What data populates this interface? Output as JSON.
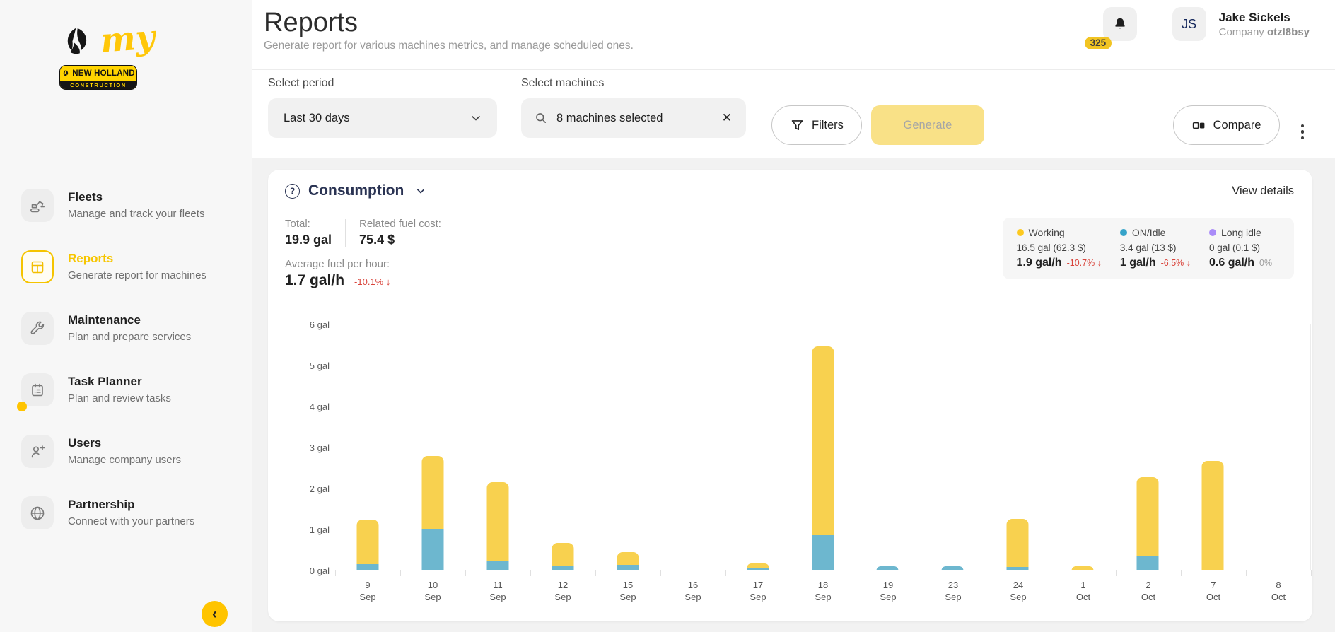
{
  "brand": {
    "my_text": "my",
    "badge_name": "NEW HOLLAND",
    "badge_division": "CONSTRUCTION"
  },
  "header": {
    "title": "Reports",
    "subtitle": "Generate report for various machines metrics, and manage scheduled ones.",
    "notifications_count": "325",
    "user": {
      "initials": "JS",
      "name": "Jake Sickels",
      "company_label": "Company",
      "company_id": "otzl8bsy"
    }
  },
  "filters": {
    "period_label": "Select period",
    "period_value": "Last 30 days",
    "machines_label": "Select machines",
    "machines_value": "8 machines selected",
    "filters_button": "Filters",
    "generate_button": "Generate",
    "compare_button": "Compare"
  },
  "sidebar": {
    "items": [
      {
        "icon": "fleets-icon",
        "title": "Fleets",
        "subtitle": "Manage and track your fleets",
        "active": false,
        "dot": false
      },
      {
        "icon": "reports-icon",
        "title": "Reports",
        "subtitle": "Generate report for machines",
        "active": true,
        "dot": false
      },
      {
        "icon": "maintenance-icon",
        "title": "Maintenance",
        "subtitle": "Plan and prepare services",
        "active": false,
        "dot": false
      },
      {
        "icon": "task-planner-icon",
        "title": "Task Planner",
        "subtitle": "Plan and review tasks",
        "active": false,
        "dot": true
      },
      {
        "icon": "users-icon",
        "title": "Users",
        "subtitle": "Manage company users",
        "active": false,
        "dot": false
      },
      {
        "icon": "partnership-icon",
        "title": "Partnership",
        "subtitle": "Connect with your partners",
        "active": false,
        "dot": false
      }
    ]
  },
  "card": {
    "title": "Consumption",
    "view_details": "View details",
    "stats": {
      "total_label": "Total:",
      "total_value": "19.9 gal",
      "cost_label": "Related fuel cost:",
      "cost_value": "75.4 $",
      "avg_label": "Average fuel per hour:",
      "avg_value": "1.7 gal/h",
      "avg_delta": "-10.1% ↓",
      "avg_delta_dir": "down"
    },
    "legend": [
      {
        "name": "Working",
        "color": "#FDC91F",
        "amount": "16.5 gal (62.3 $)",
        "rate": "1.9 gal/h",
        "delta": "-10.7% ↓",
        "delta_dir": "down"
      },
      {
        "name": "ON/Idle",
        "color": "#35A3C9",
        "amount": "3.4 gal (13 $)",
        "rate": "1 gal/h",
        "delta": "-6.5% ↓",
        "delta_dir": "down"
      },
      {
        "name": "Long idle",
        "color": "#A98BF8",
        "amount": "0 gal (0.1 $)",
        "rate": "0.6 gal/h",
        "delta": "0% =",
        "delta_dir": "flat"
      }
    ]
  },
  "chart_data": {
    "type": "bar",
    "stacked": true,
    "unit": "gal",
    "categories": [
      "9 Sep",
      "10 Sep",
      "11 Sep",
      "12 Sep",
      "15 Sep",
      "16 Sep",
      "17 Sep",
      "18 Sep",
      "19 Sep",
      "23 Sep",
      "24 Sep",
      "1 Oct",
      "2 Oct",
      "7 Oct",
      "8 Oct"
    ],
    "series": [
      {
        "name": "ON/Idle",
        "color": "#6DB7CF",
        "values": [
          0.15,
          1.0,
          0.25,
          0.1,
          0.13,
          0,
          0.07,
          0.87,
          0.1,
          0.1,
          0.08,
          0,
          0.37,
          0,
          0
        ]
      },
      {
        "name": "Working",
        "color": "#F8D14F",
        "values": [
          1.1,
          1.8,
          1.9,
          0.57,
          0.32,
          0,
          0.1,
          4.6,
          0,
          0,
          1.18,
          0.1,
          1.9,
          2.67,
          0
        ]
      },
      {
        "name": "Long idle",
        "color": "#A98BF8",
        "values": [
          0,
          0,
          0,
          0,
          0,
          0,
          0,
          0,
          0,
          0,
          0,
          0,
          0,
          0,
          0
        ]
      }
    ],
    "ylim": [
      0,
      6
    ],
    "yticks": [
      "0 gal",
      "1 gal",
      "2 gal",
      "3 gal",
      "4 gal",
      "5 gal",
      "6 gal"
    ],
    "grid": true,
    "legend_position": "top-right"
  }
}
